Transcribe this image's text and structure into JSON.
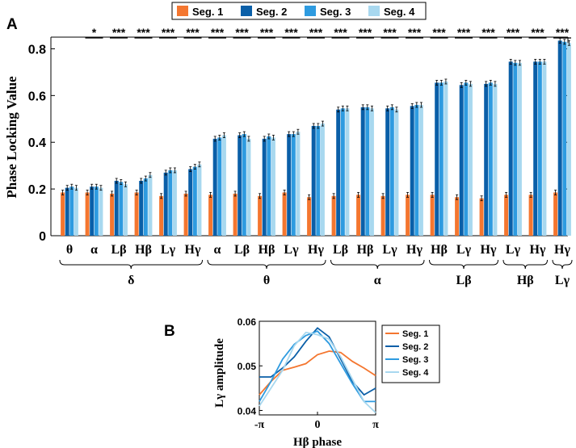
{
  "panel_a": {
    "label": "A",
    "ylabel": "Phase Locking Value",
    "legend": [
      "Seg. 1",
      "Seg. 2",
      "Seg. 3",
      "Seg. 4"
    ],
    "colors": [
      "#f4762f",
      "#0a5fa8",
      "#2e9be0",
      "#a8d8ef"
    ],
    "yticks": [
      "0",
      "0.2",
      "0.4",
      "0.6",
      "0.8"
    ]
  },
  "panel_b": {
    "label": "B",
    "ylabel": "Lγ amplitude",
    "xlabel": "Hβ phase",
    "xticks": [
      "-π",
      "0",
      "π"
    ],
    "yticks": [
      "0.04",
      "0.05",
      "0.06"
    ],
    "legend": [
      "Seg. 1",
      "Seg. 2",
      "Seg. 3",
      "Seg. 4"
    ],
    "colors": [
      "#f4762f",
      "#0a5fa8",
      "#2e9be0",
      "#a8d8ef"
    ]
  },
  "chart_data": [
    {
      "type": "bar",
      "title": "",
      "xlabel": "",
      "ylabel": "Phase Locking Value",
      "ylim": [
        0,
        0.85
      ],
      "categories": [
        "θ",
        "α",
        "Lβ",
        "Hβ",
        "Lγ",
        "Hγ",
        "α",
        "Lβ",
        "Hβ",
        "Lγ",
        "Hγ",
        "Lβ",
        "Hβ",
        "Lγ",
        "Hγ",
        "Hβ",
        "Lγ",
        "Hγ",
        "Lγ",
        "Hγ",
        "Hγ"
      ],
      "groups": [
        {
          "name": "δ",
          "count": 6
        },
        {
          "name": "θ",
          "count": 5
        },
        {
          "name": "α",
          "count": 4
        },
        {
          "name": "Lβ",
          "count": 3
        },
        {
          "name": "Hβ",
          "count": 2
        },
        {
          "name": "Lγ",
          "count": 1
        }
      ],
      "significance": [
        "",
        "*",
        "***",
        "***",
        "***",
        "***",
        "***",
        "***",
        "***",
        "***",
        "***",
        "***",
        "***",
        "***",
        "***",
        "***",
        "***",
        "***",
        "***",
        "***",
        "***"
      ],
      "series": [
        {
          "name": "Seg. 1",
          "values": [
            0.185,
            0.185,
            0.18,
            0.185,
            0.17,
            0.18,
            0.175,
            0.18,
            0.17,
            0.185,
            0.165,
            0.17,
            0.175,
            0.17,
            0.175,
            0.175,
            0.165,
            0.16,
            0.175,
            0.175,
            0.185
          ]
        },
        {
          "name": "Seg. 2",
          "values": [
            0.205,
            0.21,
            0.235,
            0.235,
            0.27,
            0.285,
            0.415,
            0.43,
            0.415,
            0.435,
            0.47,
            0.54,
            0.55,
            0.545,
            0.555,
            0.655,
            0.645,
            0.65,
            0.745,
            0.745,
            0.835
          ]
        },
        {
          "name": "Seg. 3",
          "values": [
            0.21,
            0.21,
            0.23,
            0.245,
            0.28,
            0.295,
            0.42,
            0.435,
            0.425,
            0.435,
            0.47,
            0.545,
            0.55,
            0.55,
            0.56,
            0.655,
            0.655,
            0.655,
            0.74,
            0.745,
            0.83
          ]
        },
        {
          "name": "Seg. 4",
          "values": [
            0.205,
            0.205,
            0.22,
            0.26,
            0.28,
            0.305,
            0.43,
            0.415,
            0.42,
            0.445,
            0.48,
            0.545,
            0.545,
            0.54,
            0.56,
            0.66,
            0.65,
            0.65,
            0.74,
            0.745,
            0.825
          ]
        }
      ]
    },
    {
      "type": "line",
      "title": "",
      "xlabel": "Hβ phase",
      "ylabel": "Lγ amplitude",
      "xlim": [
        -3.1416,
        3.1416
      ],
      "ylim": [
        0.039,
        0.06
      ],
      "x": [
        -3.1416,
        -2.5133,
        -1.885,
        -1.2566,
        -0.6283,
        0,
        0.6283,
        1.2566,
        1.885,
        2.5133,
        3.1416
      ],
      "series": [
        {
          "name": "Seg. 1",
          "values": [
            0.0435,
            0.0465,
            0.049,
            0.0497,
            0.0505,
            0.0525,
            0.0533,
            0.053,
            0.051,
            0.0495,
            0.0478
          ]
        },
        {
          "name": "Seg. 2",
          "values": [
            0.0475,
            0.0475,
            0.0495,
            0.052,
            0.0555,
            0.0585,
            0.0565,
            0.0515,
            0.0465,
            0.0435,
            0.045
          ]
        },
        {
          "name": "Seg. 3",
          "values": [
            0.042,
            0.0465,
            0.0515,
            0.0548,
            0.0568,
            0.0578,
            0.055,
            0.0505,
            0.046,
            0.042,
            0.042
          ]
        },
        {
          "name": "Seg. 4",
          "values": [
            0.041,
            0.045,
            0.049,
            0.0545,
            0.0575,
            0.057,
            0.056,
            0.052,
            0.047,
            0.042,
            0.0395
          ]
        }
      ]
    }
  ]
}
